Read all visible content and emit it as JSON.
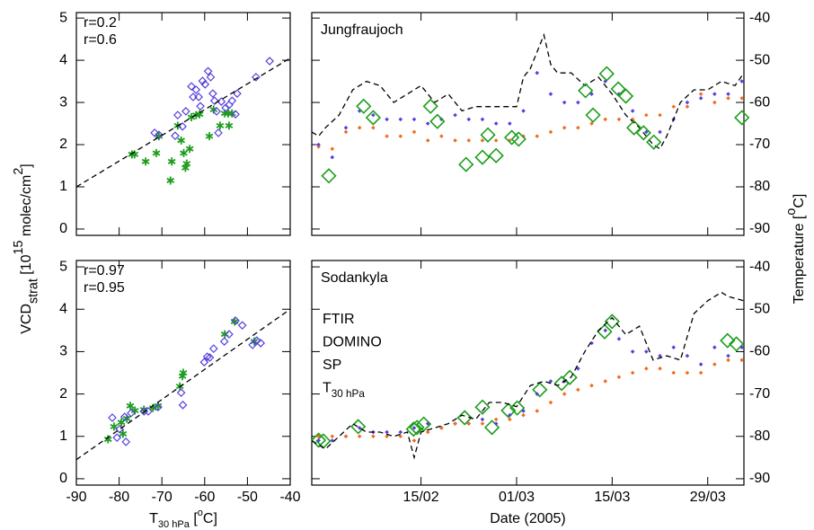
{
  "ylabel": [
    "VCD",
    "strat",
    " [10",
    "15",
    " molec/cm",
    "2",
    "]"
  ],
  "y2label": [
    "Temperature [",
    "o",
    "C]"
  ],
  "chart_data": [
    {
      "type": "scatter",
      "annotations": [
        {
          "text": "r=0.2",
          "color": "#1e9e1e"
        },
        {
          "text": "r=0.6",
          "color": "#5540dd"
        }
      ],
      "xlim": [
        -90,
        -40
      ],
      "xticks": [
        -90,
        -80,
        -70,
        -60,
        -50,
        -40
      ],
      "ylim": [
        -0.15,
        5.13
      ],
      "yticks": [
        0,
        1,
        2,
        3,
        4,
        5
      ],
      "series": [
        {
          "color": "#1e9e1e",
          "marker": "asterisk",
          "x": [
            -77,
            -76.4,
            -73.8,
            -71.3,
            -70.7,
            -68,
            -67.7,
            -66.3,
            -65.5,
            -64.9,
            -64.5,
            -64.2,
            -63.5,
            -63.1,
            -62,
            -61.2,
            -58.9,
            -57.9,
            -56.4,
            -55.3,
            -54.5,
            -54.3,
            -53.6
          ],
          "values": [
            1.77,
            1.77,
            1.6,
            1.8,
            2.2,
            1.15,
            1.6,
            2.45,
            2.1,
            1.8,
            1.45,
            1.55,
            1.9,
            2.65,
            2.7,
            2.72,
            2.2,
            2.83,
            2.45,
            2.74,
            2.74,
            2.45,
            2.74
          ]
        },
        {
          "color": "#5540dd",
          "marker": "diamond",
          "x": [
            -71.7,
            -70.7,
            -66.9,
            -66.3,
            -65.2,
            -64.4,
            -63.1,
            -62.7,
            -62,
            -61.4,
            -61,
            -60.5,
            -59.9,
            -59.2,
            -58.6,
            -58.1,
            -57.7,
            -57.2,
            -56.8,
            -56.1,
            -55.1,
            -54.3,
            -53.6,
            -52.8,
            -52.4,
            -48,
            -44.8
          ],
          "values": [
            2.28,
            2.23,
            2.21,
            2.7,
            2.43,
            2.79,
            3.38,
            3.13,
            3.3,
            3.13,
            2.91,
            3.51,
            3.43,
            3.74,
            3.6,
            3.21,
            3.04,
            2.79,
            2.28,
            3.02,
            2.87,
            2.94,
            3.04,
            2.72,
            3.21,
            3.6,
            3.98
          ]
        },
        {
          "color": "#000000",
          "marker": "dashed-line",
          "x": [
            -90,
            -40
          ],
          "values": [
            1.0,
            4.05
          ]
        }
      ]
    },
    {
      "type": "scatter",
      "annotations": [
        {
          "text": "r=0.97",
          "color": "#1e9e1e"
        },
        {
          "text": "r=0.95",
          "color": "#5540dd"
        }
      ],
      "xlabel": [
        "T",
        "30 hPa",
        " [",
        "o",
        "C]"
      ],
      "xlim": [
        -90,
        -40
      ],
      "xticks": [
        -90,
        -80,
        -70,
        -60,
        -50,
        -40
      ],
      "ylim": [
        -0.15,
        5.15
      ],
      "yticks": [
        0,
        1,
        2,
        3,
        4,
        5
      ],
      "series": [
        {
          "color": "#1e9e1e",
          "marker": "asterisk",
          "x": [
            -82.6,
            -81.2,
            -79.5,
            -79.1,
            -78.2,
            -77.4,
            -76.3,
            -74.2,
            -72.1,
            -70.9,
            -65.8,
            -65.2,
            -65,
            -55.3,
            -53,
            -48.4
          ],
          "values": [
            0.93,
            1.23,
            1.33,
            1.06,
            1.42,
            1.72,
            1.61,
            1.63,
            1.67,
            1.72,
            2.18,
            2.42,
            2.5,
            3.41,
            3.71,
            3.24
          ]
        },
        {
          "color": "#5540dd",
          "marker": "diamond",
          "x": [
            -81.6,
            -80.5,
            -79.9,
            -78.7,
            -78.4,
            -77.2,
            -74.2,
            -73.2,
            -70.9,
            -65.5,
            -65.1,
            -60.1,
            -59.4,
            -58.8,
            -57.9,
            -55.4,
            -54.3,
            -52.8,
            -51.2,
            -48.8,
            -47.8,
            -46.9
          ],
          "values": [
            1.44,
            0.97,
            1.17,
            1.46,
            0.87,
            1.55,
            1.59,
            1.59,
            1.69,
            2.03,
            1.74,
            2.75,
            2.88,
            2.86,
            3.07,
            3.24,
            3.41,
            3.73,
            3.62,
            3.16,
            3.26,
            3.2
          ]
        },
        {
          "color": "#000000",
          "marker": "dashed-line",
          "x": [
            -90,
            -40
          ],
          "values": [
            0.45,
            4.0
          ]
        }
      ]
    },
    {
      "type": "line",
      "title": "Jungfraujoch",
      "xlim": [
        30,
        93.3
      ],
      "xticks": [
        46,
        60,
        74,
        88
      ],
      "ylim": [
        -0.15,
        5.13
      ],
      "yticks": [
        0,
        1,
        2,
        3,
        4,
        5
      ],
      "y2lim": [
        -91.5,
        -38.7
      ],
      "y2ticks": [
        -90,
        -80,
        -70,
        -60,
        -50,
        -40
      ],
      "series": [
        {
          "color": "#f26b1b",
          "marker": "dot",
          "x": [
            31,
            33,
            35,
            37,
            39,
            41,
            43,
            45,
            47,
            49,
            51,
            53,
            55,
            57,
            59,
            61,
            63,
            65,
            67,
            69,
            71,
            73,
            75,
            77,
            79,
            81,
            83,
            85,
            87,
            89,
            91,
            93
          ],
          "values": [
            1.95,
            1.9,
            2.3,
            2.4,
            2.4,
            2.2,
            2.2,
            2.3,
            2.1,
            2.2,
            2.1,
            2.1,
            2.1,
            2.1,
            2.1,
            2.2,
            2.2,
            2.3,
            2.4,
            2.4,
            2.5,
            2.6,
            2.6,
            2.6,
            2.7,
            2.7,
            2.9,
            2.9,
            3.2,
            3.0,
            3.1,
            3.1
          ]
        },
        {
          "color": "#5540dd",
          "marker": "dot",
          "x": [
            31,
            33,
            35,
            37,
            39,
            41,
            43,
            45,
            47,
            49,
            51,
            53,
            55,
            57,
            59,
            61,
            63,
            65,
            67,
            69,
            71,
            73,
            75,
            77,
            79,
            81,
            83,
            85,
            87,
            89,
            91,
            93
          ],
          "values": [
            2.0,
            1.7,
            2.4,
            2.8,
            2.7,
            2.6,
            2.6,
            2.6,
            2.5,
            2.6,
            2.7,
            2.6,
            2.6,
            2.5,
            2.5,
            2.8,
            3.7,
            3.2,
            3.0,
            3.0,
            3.2,
            3.5,
            3.2,
            2.8,
            2.3,
            2.3,
            2.6,
            3.0,
            3.1,
            3.2,
            3.2,
            3.5
          ]
        },
        {
          "color": "#000000",
          "marker": "dashed-line",
          "axis": "y2",
          "x": [
            30,
            31,
            32,
            34,
            36,
            38,
            40,
            42,
            44,
            46,
            48,
            50,
            52,
            54,
            56,
            58,
            60,
            61,
            62,
            63,
            64,
            65,
            66,
            68,
            70,
            72,
            74,
            76,
            78,
            80,
            81,
            82,
            84,
            86,
            88,
            90,
            92,
            93.3
          ],
          "values": [
            -67,
            -68,
            -66,
            -63,
            -57,
            -55,
            -56,
            -60,
            -58,
            -56,
            -60,
            -58,
            -62,
            -61,
            -61,
            -61,
            -61,
            -54,
            -52,
            -48,
            -44,
            -51,
            -53,
            -53,
            -56,
            -54,
            -58,
            -63,
            -66,
            -70,
            -71,
            -68,
            -60,
            -57,
            -57,
            -55,
            -56,
            -53
          ]
        },
        {
          "color": "#1e9e1e",
          "marker": "diamond",
          "x": [
            32.5,
            37.6,
            39,
            47.4,
            48.4,
            52.6,
            55,
            55.8,
            57,
            59.3,
            60.3,
            70.1,
            71.2,
            73.2,
            74.9,
            76,
            77.2,
            78.6,
            80.1,
            93
          ],
          "values": [
            1.26,
            2.91,
            2.64,
            2.91,
            2.55,
            1.53,
            1.7,
            2.23,
            1.74,
            2.17,
            2.13,
            3.28,
            2.7,
            3.68,
            3.32,
            3.15,
            2.4,
            2.28,
            2.06,
            2.64
          ]
        }
      ]
    },
    {
      "type": "line",
      "title": "Sodankyla",
      "xlabel": "Date (2005)",
      "legend": "middle left",
      "xlim": [
        30,
        93.3
      ],
      "xticks": [
        {
          "value": 46,
          "label": "15/02"
        },
        {
          "value": 60,
          "label": "01/03"
        },
        {
          "value": 74,
          "label": "15/03"
        },
        {
          "value": 88,
          "label": "29/03"
        }
      ],
      "ylim": [
        -0.15,
        5.15
      ],
      "yticks": [
        0,
        1,
        2,
        3,
        4,
        5
      ],
      "y2lim": [
        -91.5,
        -38.5
      ],
      "y2ticks": [
        -90,
        -80,
        -70,
        -60,
        -50,
        -40
      ],
      "series": [
        {
          "name": "FTIR",
          "color": "#1e9e1e",
          "marker": "diamond",
          "x": [
            31,
            31.7,
            36.8,
            44.9,
            45.4,
            46.4,
            52.4,
            55,
            56.4,
            58.8,
            60.1,
            63.4,
            66.6,
            67.8,
            72.9,
            74,
            90.9,
            92.2
          ],
          "values": [
            0.91,
            0.89,
            1.23,
            1.17,
            1.21,
            1.29,
            1.44,
            1.69,
            1.21,
            1.61,
            1.67,
            2.1,
            2.25,
            2.39,
            3.47,
            3.71,
            3.26,
            3.18
          ]
        },
        {
          "name": "DOMINO",
          "color": "#5540dd",
          "marker": "dot",
          "x": [
            31,
            33,
            35,
            37,
            39,
            41,
            43,
            45,
            47,
            49,
            51,
            53,
            55,
            57,
            59,
            61,
            63,
            65,
            67,
            69,
            71,
            73,
            75,
            77,
            79,
            81,
            83,
            85,
            87,
            89,
            91,
            93
          ],
          "values": [
            0.9,
            0.9,
            1.0,
            1.2,
            1.1,
            1.1,
            1.1,
            1.2,
            1.3,
            1.2,
            1.3,
            1.3,
            1.4,
            1.3,
            1.5,
            1.6,
            2.0,
            2.3,
            2.3,
            2.6,
            3.2,
            3.5,
            3.3,
            3.0,
            3.0,
            2.9,
            3.1,
            2.9,
            2.7,
            3.1,
            2.9,
            3.1
          ]
        },
        {
          "name": "SP",
          "color": "#f26b1b",
          "marker": "dot",
          "x": [
            31,
            33,
            35,
            37,
            39,
            41,
            43,
            45,
            47,
            49,
            51,
            53,
            55,
            57,
            59,
            61,
            63,
            65,
            67,
            69,
            71,
            73,
            75,
            77,
            79,
            81,
            83,
            85,
            87,
            89,
            91,
            93
          ],
          "values": [
            1.0,
            1.0,
            1.0,
            1.0,
            1.0,
            1.0,
            1.0,
            0.9,
            1.1,
            1.2,
            1.3,
            1.3,
            1.3,
            1.4,
            1.4,
            1.5,
            1.6,
            1.8,
            2.0,
            2.1,
            2.2,
            2.3,
            2.4,
            2.5,
            2.6,
            2.6,
            2.5,
            2.5,
            2.5,
            2.7,
            2.8,
            2.8
          ]
        },
        {
          "name": [
            "T",
            "30 hPa"
          ],
          "color": "#000000",
          "marker": "dashed-line",
          "axis": "y2",
          "x": [
            30,
            32,
            34,
            36,
            38,
            40,
            42,
            44,
            45,
            46,
            48,
            50,
            52,
            54,
            56,
            58,
            60,
            62,
            64,
            66,
            68,
            70,
            72,
            74,
            76,
            78,
            80,
            82,
            84,
            86,
            88,
            90,
            91,
            93.3
          ],
          "values": [
            -81,
            -83,
            -80,
            -77,
            -79,
            -79,
            -80,
            -79,
            -85,
            -79,
            -78,
            -77,
            -75,
            -76,
            -72,
            -72,
            -73,
            -68,
            -67,
            -68,
            -66,
            -60,
            -55,
            -52,
            -56,
            -54,
            -62,
            -61,
            -62,
            -51,
            -48,
            -46,
            -47,
            -48
          ]
        }
      ]
    }
  ]
}
